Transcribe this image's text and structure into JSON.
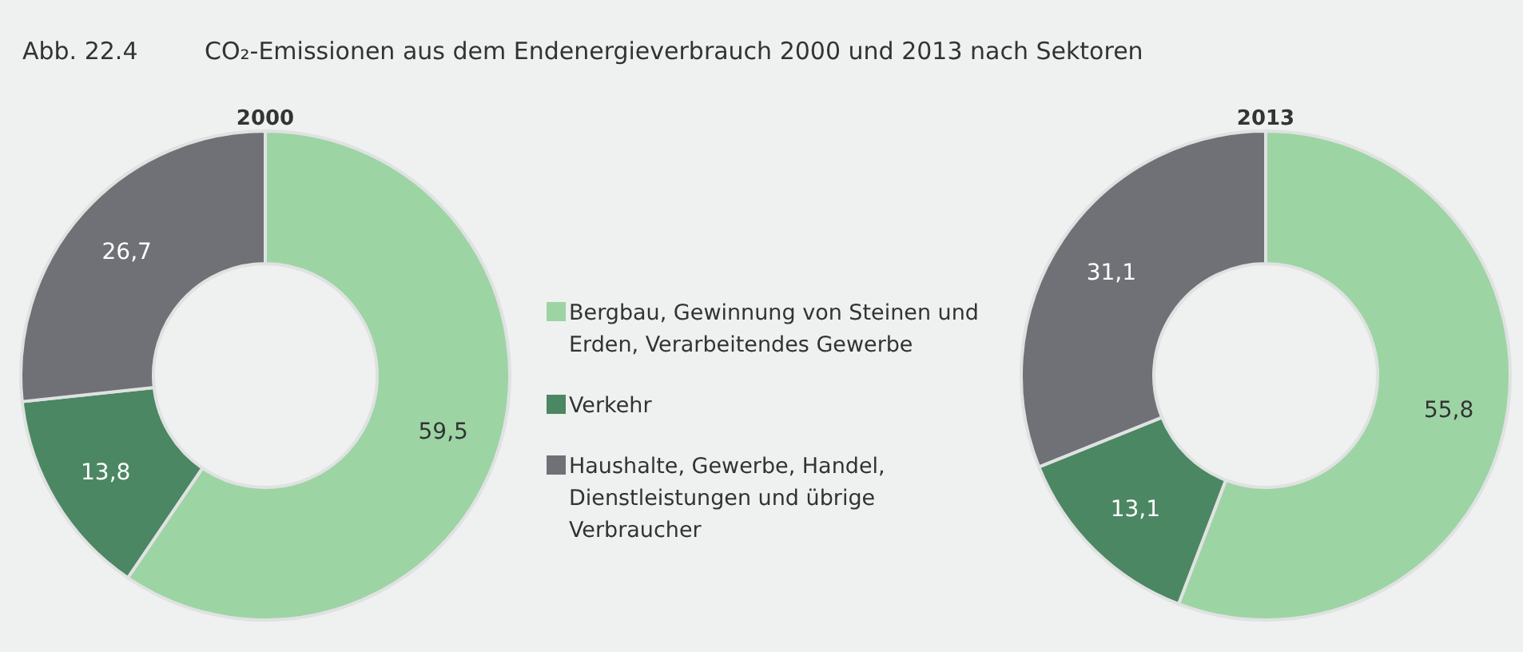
{
  "chart_data": [
    {
      "type": "donut",
      "title": "2000",
      "annotations": [
        "Abb. 22.4",
        "CO₂-Emissionen aus dem Endenergieverbrauch 2000 und 2013 nach Sektoren"
      ],
      "categories": [
        "Bergbau, Gewinnung von Steinen und Erden, Verarbeitendes Gewerbe",
        "Verkehr",
        "Haushalte, Gewerbe, Handel, Dienstleistungen und übrige Verbraucher"
      ],
      "values": [
        59.5,
        13.8,
        26.7
      ],
      "value_labels": [
        "59,5",
        "13,8",
        "26,7"
      ],
      "colors": [
        "#9dd4a4",
        "#4b8762",
        "#6f7176"
      ],
      "legend": "right"
    },
    {
      "type": "donut",
      "title": "2013",
      "categories": [
        null,
        null,
        null
      ],
      "values": [
        55.8,
        13.1,
        31.1
      ],
      "value_labels": [
        "55,8",
        "13,1",
        "31,1"
      ],
      "colors": [
        "#9dd4a4",
        "#4b8762",
        "#6f7176"
      ]
    }
  ]
}
